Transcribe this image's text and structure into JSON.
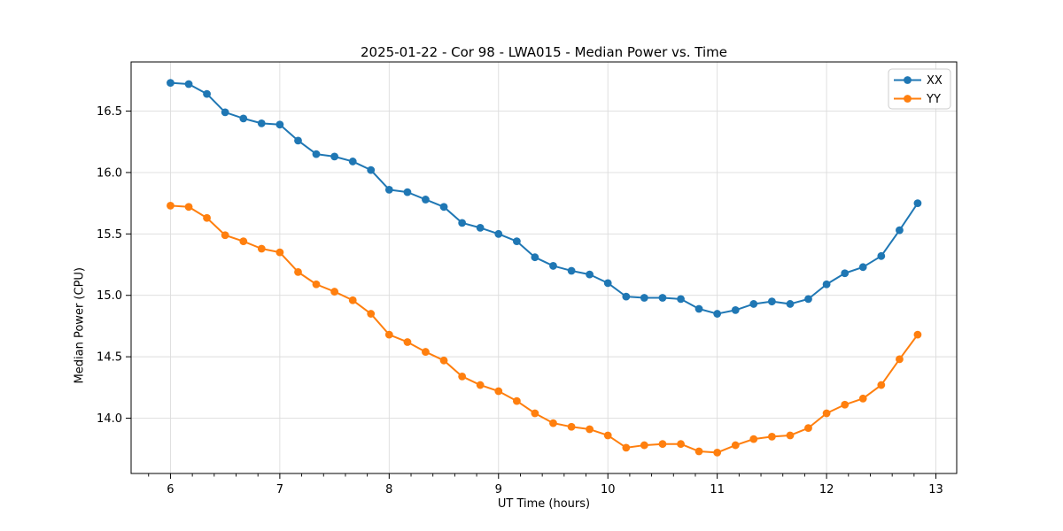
{
  "chart_data": {
    "type": "line",
    "title": "2025-01-22 - Cor 98 - LWA015 - Median Power vs. Time",
    "xlabel": "UT Time (hours)",
    "ylabel": "Median Power (CPU)",
    "xlim": [
      5.64,
      13.19
    ],
    "ylim": [
      13.55,
      16.9
    ],
    "xticks": [
      6,
      7,
      8,
      9,
      10,
      11,
      12,
      13
    ],
    "xtick_labels": [
      "6",
      "7",
      "8",
      "9",
      "10",
      "11",
      "12",
      "13"
    ],
    "x_minor_step": 0.2,
    "yticks": [
      14.0,
      14.5,
      15.0,
      15.5,
      16.0,
      16.5
    ],
    "ytick_labels": [
      "14.0",
      "14.5",
      "15.0",
      "15.5",
      "16.0",
      "16.5"
    ],
    "grid": true,
    "grid_color": "#dcdcdc",
    "axis_color": "#000000",
    "legend_position": "upper right",
    "x": [
      6.0,
      6.167,
      6.333,
      6.5,
      6.667,
      6.833,
      7.0,
      7.167,
      7.333,
      7.5,
      7.667,
      7.833,
      8.0,
      8.167,
      8.333,
      8.5,
      8.667,
      8.833,
      9.0,
      9.167,
      9.333,
      9.5,
      9.667,
      9.833,
      10.0,
      10.167,
      10.333,
      10.5,
      10.667,
      10.833,
      11.0,
      11.167,
      11.333,
      11.5,
      11.667,
      11.833,
      12.0,
      12.167,
      12.333,
      12.5,
      12.667,
      12.833
    ],
    "series": [
      {
        "name": "XX",
        "color": "#1f77b4",
        "values": [
          16.73,
          16.72,
          16.64,
          16.49,
          16.44,
          16.4,
          16.39,
          16.26,
          16.15,
          16.13,
          16.09,
          16.02,
          15.86,
          15.84,
          15.78,
          15.72,
          15.59,
          15.55,
          15.5,
          15.44,
          15.31,
          15.24,
          15.2,
          15.17,
          15.1,
          14.99,
          14.98,
          14.98,
          14.97,
          14.89,
          14.85,
          14.88,
          14.93,
          14.95,
          14.93,
          14.97,
          15.09,
          15.18,
          15.23,
          15.32,
          15.53,
          15.75
        ]
      },
      {
        "name": "YY",
        "color": "#ff7f0e",
        "values": [
          15.73,
          15.72,
          15.63,
          15.49,
          15.44,
          15.38,
          15.35,
          15.19,
          15.09,
          15.03,
          14.96,
          14.85,
          14.68,
          14.62,
          14.54,
          14.47,
          14.34,
          14.27,
          14.22,
          14.14,
          14.04,
          13.96,
          13.93,
          13.91,
          13.86,
          13.76,
          13.78,
          13.79,
          13.79,
          13.73,
          13.72,
          13.78,
          13.83,
          13.85,
          13.86,
          13.92,
          14.04,
          14.11,
          14.16,
          14.27,
          14.48,
          14.68
        ]
      }
    ]
  }
}
